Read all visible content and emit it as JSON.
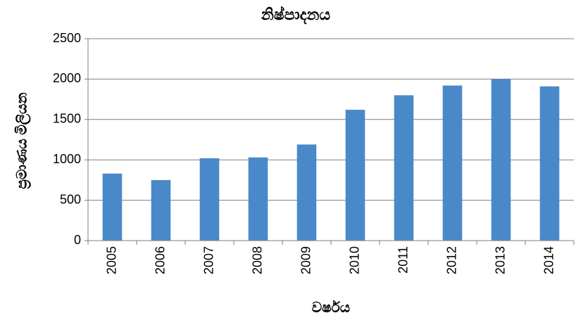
{
  "chart_data": {
    "type": "bar",
    "title": "නිෂ්පාදනය",
    "x_label": "වර්ෂය",
    "y_label": "ප්‍රමාණය මිලියන",
    "categories": [
      "2005",
      "2006",
      "2007",
      "2008",
      "2009",
      "2010",
      "2011",
      "2012",
      "2013",
      "2014"
    ],
    "values": [
      830,
      750,
      1020,
      1030,
      1190,
      1620,
      1800,
      1920,
      2000,
      1910
    ],
    "color": "#4a89c9",
    "ylim": [
      0,
      2500
    ],
    "yticks": [
      0,
      500,
      1000,
      1500,
      2000,
      2500
    ],
    "grid": true
  }
}
